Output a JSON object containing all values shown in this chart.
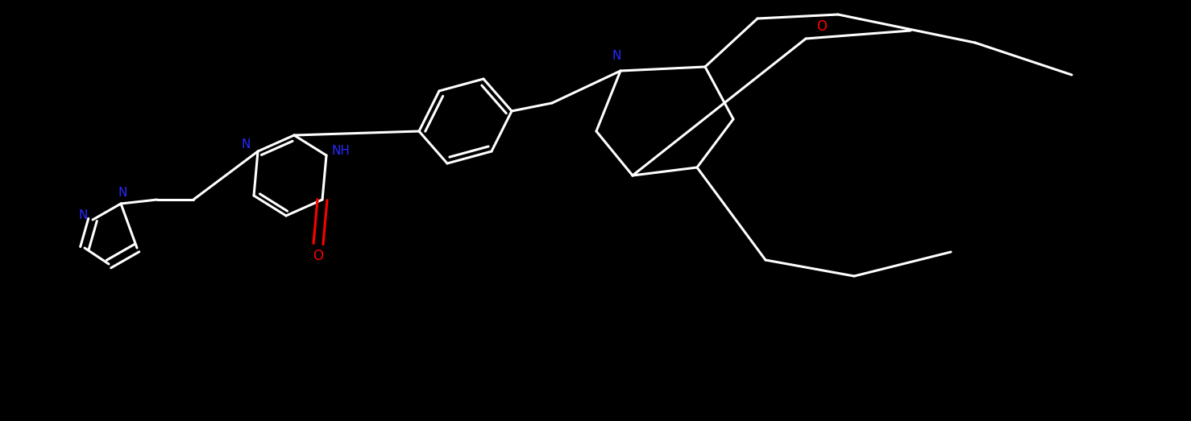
{
  "background_color": "#000000",
  "bond_color": "#ffffff",
  "nitrogen_color": "#2929ff",
  "oxygen_color": "#ff0000",
  "fig_width": 14.78,
  "fig_height": 5.23,
  "dpi": 100,
  "xlim": [
    0,
    147.8
  ],
  "ylim": [
    0,
    52.3
  ]
}
